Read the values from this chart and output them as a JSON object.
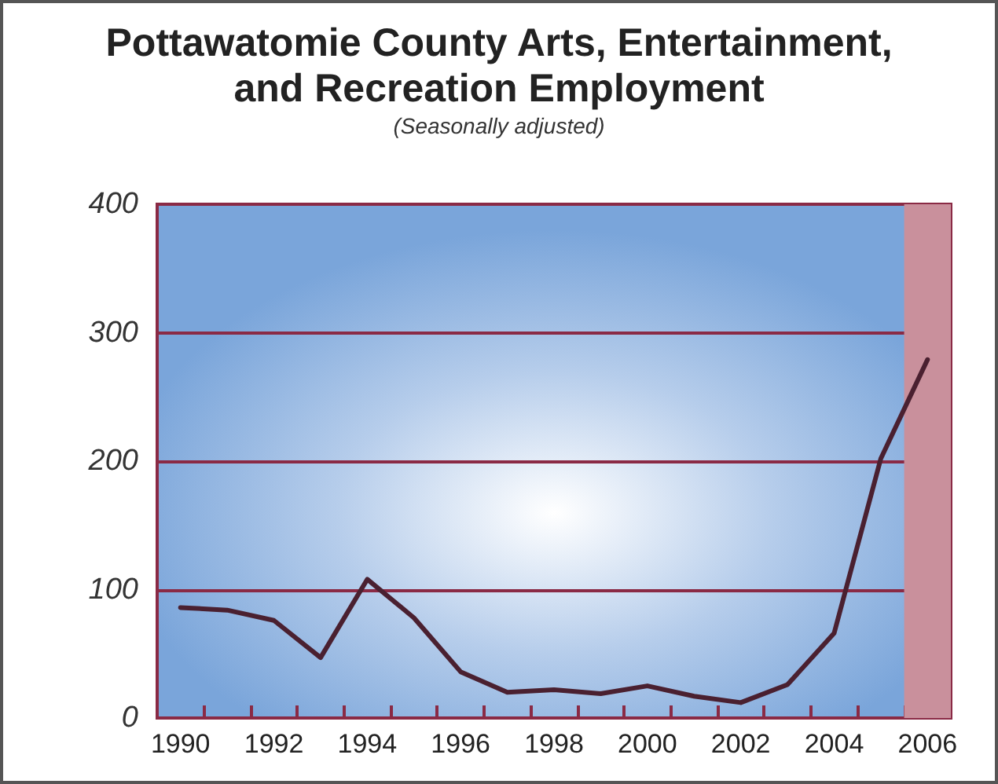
{
  "chart_data": {
    "type": "line",
    "title": "Pottawatomie County Arts, Entertainment,\nand Recreation Employment",
    "subtitle": "(Seasonally adjusted)",
    "categories": [
      "1990",
      null,
      "1992",
      null,
      "1994",
      null,
      "1996",
      null,
      "1998",
      null,
      "2000",
      null,
      "2002",
      null,
      "2004",
      null,
      "2006"
    ],
    "series": [
      {
        "color": "#4a2030",
        "values": [
          86,
          84,
          76,
          47,
          108,
          78,
          36,
          20,
          22,
          19,
          25,
          17,
          12,
          26,
          66,
          202,
          279
        ]
      }
    ],
    "ylim": [
      0,
      400
    ],
    "yticks": [
      0,
      100,
      200,
      300,
      400
    ],
    "grid": "y",
    "marker": "none",
    "line_style": "solid",
    "bands": [
      {
        "axis": "x",
        "from": "2006",
        "to": "2006",
        "color": "#c9909c"
      }
    ]
  }
}
